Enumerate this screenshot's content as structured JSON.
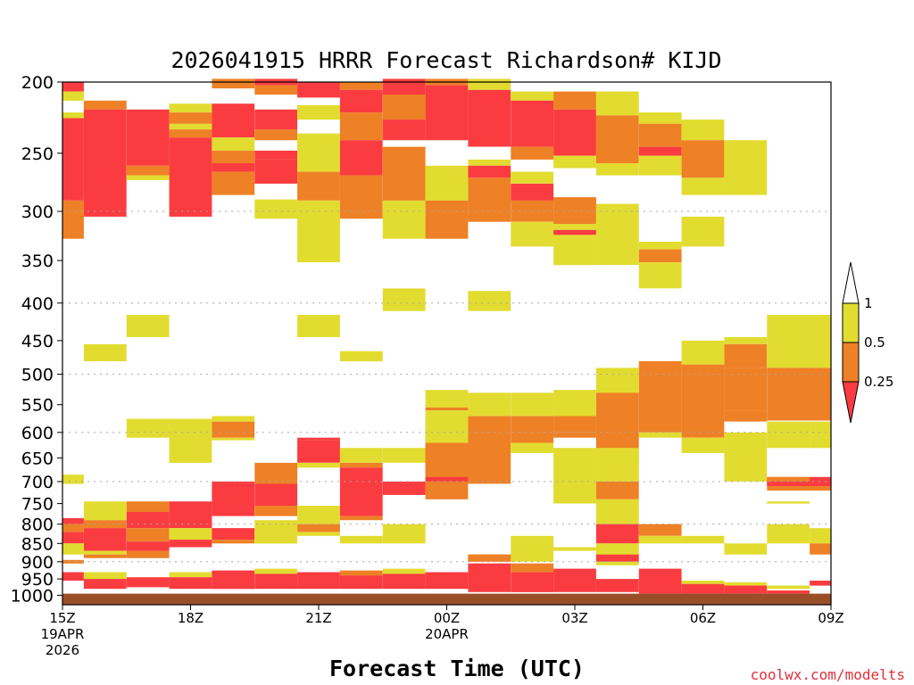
{
  "chart_data": {
    "type": "heatmap",
    "title": "2026041915 HRRR Forecast Richardson# KIJD",
    "xlabel": "Forecast Time (UTC)",
    "credit": "coolwx.com/modelts",
    "x_range_hours": [
      0,
      18
    ],
    "y_range_hpa": [
      200,
      1030
    ],
    "y_ticks": [
      200,
      250,
      300,
      350,
      400,
      450,
      500,
      550,
      600,
      650,
      700,
      750,
      800,
      850,
      900,
      950,
      1000
    ],
    "gridlines_hpa": [
      300,
      400,
      500,
      600,
      700,
      800,
      900
    ],
    "x_ticks": [
      {
        "h": 0,
        "lines": [
          "15Z",
          "19APR",
          "2026"
        ]
      },
      {
        "h": 3,
        "lines": [
          "18Z"
        ]
      },
      {
        "h": 6,
        "lines": [
          "21Z"
        ]
      },
      {
        "h": 9,
        "lines": [
          "00Z",
          "20APR"
        ]
      },
      {
        "h": 12,
        "lines": [
          "03Z"
        ]
      },
      {
        "h": 15,
        "lines": [
          "06Z"
        ]
      },
      {
        "h": 18,
        "lines": [
          "09Z"
        ]
      }
    ],
    "legend": {
      "placement": "right",
      "labels": [
        "1",
        "0.5",
        "0.25"
      ],
      "colors": {
        "white": "#ffffff",
        "yellow": "#e2dc30",
        "orange": "#ee8026",
        "red": "#fa3c40"
      }
    },
    "ground_color": "#9a4e28",
    "ground_top_hpa": 995,
    "category_colors": {
      "Y": "#e2dc30",
      "O": "#ee8026",
      "R": "#fa3c40"
    },
    "cells": [
      [
        0.0,
        0.5,
        200,
        206,
        "R"
      ],
      [
        0.0,
        0.5,
        206,
        212,
        "Y"
      ],
      [
        0.0,
        0.5,
        220,
        224,
        "Y"
      ],
      [
        0.0,
        0.5,
        224,
        290,
        "R"
      ],
      [
        0.0,
        0.5,
        290,
        327,
        "O"
      ],
      [
        0.5,
        1.5,
        212,
        218,
        "O"
      ],
      [
        0.5,
        1.5,
        218,
        305,
        "R"
      ],
      [
        1.5,
        2.5,
        218,
        260,
        "R"
      ],
      [
        1.5,
        2.5,
        260,
        268,
        "O"
      ],
      [
        1.5,
        2.5,
        268,
        272,
        "Y"
      ],
      [
        2.5,
        3.5,
        214,
        220,
        "Y"
      ],
      [
        2.5,
        3.5,
        220,
        228,
        "O"
      ],
      [
        2.5,
        3.5,
        228,
        232,
        "Y"
      ],
      [
        2.5,
        3.5,
        232,
        238,
        "O"
      ],
      [
        2.5,
        3.5,
        238,
        305,
        "R"
      ],
      [
        3.5,
        4.5,
        198,
        204,
        "O"
      ],
      [
        3.5,
        4.5,
        214,
        238,
        "R"
      ],
      [
        3.5,
        4.5,
        238,
        248,
        "Y"
      ],
      [
        3.5,
        4.5,
        248,
        258,
        "O"
      ],
      [
        3.5,
        4.5,
        258,
        265,
        "R"
      ],
      [
        3.5,
        4.5,
        265,
        285,
        "O"
      ],
      [
        4.5,
        5.5,
        198,
        202,
        "R"
      ],
      [
        4.5,
        5.5,
        202,
        208,
        "O"
      ],
      [
        4.5,
        5.5,
        218,
        232,
        "R"
      ],
      [
        4.5,
        5.5,
        232,
        240,
        "O"
      ],
      [
        4.5,
        5.5,
        248,
        255,
        "R"
      ],
      [
        4.5,
        5.5,
        255,
        275,
        "R"
      ],
      [
        4.5,
        5.5,
        289,
        307,
        "Y"
      ],
      [
        5.5,
        6.5,
        200,
        210,
        "R"
      ],
      [
        5.5,
        6.5,
        215,
        225,
        "Y"
      ],
      [
        5.5,
        6.5,
        235,
        265,
        "Y"
      ],
      [
        5.5,
        6.5,
        265,
        290,
        "O"
      ],
      [
        5.5,
        6.5,
        290,
        352,
        "Y"
      ],
      [
        6.5,
        7.5,
        200,
        205,
        "O"
      ],
      [
        6.5,
        7.5,
        205,
        220,
        "R"
      ],
      [
        6.5,
        7.5,
        220,
        240,
        "O"
      ],
      [
        6.5,
        7.5,
        240,
        268,
        "R"
      ],
      [
        6.5,
        7.5,
        268,
        307,
        "O"
      ],
      [
        7.5,
        8.5,
        198,
        208,
        "R"
      ],
      [
        7.5,
        8.5,
        208,
        225,
        "O"
      ],
      [
        7.5,
        8.5,
        225,
        240,
        "R"
      ],
      [
        7.5,
        8.5,
        245,
        290,
        "O"
      ],
      [
        7.5,
        8.5,
        290,
        327,
        "Y"
      ],
      [
        8.5,
        9.5,
        198,
        202,
        "O"
      ],
      [
        8.5,
        9.5,
        202,
        240,
        "R"
      ],
      [
        8.5,
        9.5,
        260,
        290,
        "Y"
      ],
      [
        8.5,
        9.5,
        290,
        327,
        "O"
      ],
      [
        9.5,
        10.5,
        198,
        205,
        "Y"
      ],
      [
        9.5,
        10.5,
        205,
        245,
        "R"
      ],
      [
        9.5,
        10.5,
        255,
        260,
        "Y"
      ],
      [
        9.5,
        10.5,
        260,
        270,
        "R"
      ],
      [
        9.5,
        10.5,
        270,
        300,
        "O"
      ],
      [
        9.5,
        10.5,
        300,
        310,
        "O"
      ],
      [
        10.5,
        11.5,
        206,
        212,
        "Y"
      ],
      [
        10.5,
        11.5,
        212,
        245,
        "R"
      ],
      [
        10.5,
        11.5,
        245,
        255,
        "O"
      ],
      [
        10.5,
        11.5,
        265,
        275,
        "Y"
      ],
      [
        10.5,
        11.5,
        275,
        290,
        "R"
      ],
      [
        10.5,
        11.5,
        290,
        310,
        "O"
      ],
      [
        10.5,
        11.5,
        310,
        335,
        "Y"
      ],
      [
        11.5,
        12.5,
        206,
        218,
        "O"
      ],
      [
        11.5,
        12.5,
        218,
        252,
        "R"
      ],
      [
        11.5,
        12.5,
        252,
        262,
        "Y"
      ],
      [
        11.5,
        12.5,
        287,
        312,
        "O"
      ],
      [
        11.5,
        12.5,
        312,
        318,
        "Y"
      ],
      [
        11.5,
        12.5,
        318,
        323,
        "R"
      ],
      [
        11.5,
        12.5,
        323,
        355,
        "Y"
      ],
      [
        12.5,
        13.5,
        206,
        222,
        "Y"
      ],
      [
        12.5,
        13.5,
        222,
        258,
        "O"
      ],
      [
        12.5,
        13.5,
        258,
        268,
        "Y"
      ],
      [
        12.5,
        13.5,
        293,
        355,
        "Y"
      ],
      [
        13.5,
        14.5,
        220,
        228,
        "Y"
      ],
      [
        13.5,
        14.5,
        228,
        245,
        "O"
      ],
      [
        13.5,
        14.5,
        245,
        252,
        "R"
      ],
      [
        13.5,
        14.5,
        252,
        268,
        "Y"
      ],
      [
        13.5,
        14.5,
        330,
        338,
        "Y"
      ],
      [
        13.5,
        14.5,
        338,
        352,
        "O"
      ],
      [
        13.5,
        14.5,
        352,
        382,
        "Y"
      ],
      [
        14.5,
        15.5,
        225,
        240,
        "Y"
      ],
      [
        14.5,
        15.5,
        240,
        270,
        "O"
      ],
      [
        14.5,
        15.5,
        270,
        285,
        "Y"
      ],
      [
        14.5,
        15.5,
        305,
        335,
        "Y"
      ],
      [
        15.5,
        16.5,
        240,
        285,
        "Y"
      ],
      [
        0.0,
        0.5,
        685,
        705,
        "Y"
      ],
      [
        0.5,
        1.5,
        455,
        480,
        "Y"
      ],
      [
        1.5,
        2.5,
        415,
        445,
        "Y"
      ],
      [
        5.5,
        6.5,
        415,
        445,
        "Y"
      ],
      [
        6.5,
        7.5,
        465,
        480,
        "Y"
      ],
      [
        7.5,
        8.5,
        382,
        410,
        "Y"
      ],
      [
        9.5,
        10.5,
        385,
        410,
        "Y"
      ],
      [
        15.5,
        16.5,
        445,
        455,
        "Y"
      ],
      [
        15.5,
        16.5,
        455,
        490,
        "O"
      ],
      [
        16.5,
        18.0,
        415,
        490,
        "Y"
      ],
      [
        16.5,
        18.0,
        490,
        578,
        "O"
      ],
      [
        15.5,
        16.5,
        490,
        560,
        "O"
      ],
      [
        15.5,
        16.5,
        560,
        580,
        "O"
      ],
      [
        14.5,
        15.5,
        450,
        485,
        "Y"
      ],
      [
        14.5,
        15.5,
        485,
        610,
        "O"
      ],
      [
        13.5,
        14.5,
        480,
        600,
        "O"
      ],
      [
        13.5,
        14.5,
        600,
        610,
        "Y"
      ],
      [
        12.5,
        13.5,
        490,
        530,
        "Y"
      ],
      [
        12.5,
        13.5,
        530,
        660,
        "O"
      ],
      [
        12.5,
        13.5,
        660,
        670,
        "Y"
      ],
      [
        11.5,
        12.5,
        525,
        570,
        "Y"
      ],
      [
        11.5,
        12.5,
        570,
        600,
        "O"
      ],
      [
        11.5,
        12.5,
        600,
        610,
        "O"
      ],
      [
        10.5,
        11.5,
        530,
        570,
        "Y"
      ],
      [
        10.5,
        11.5,
        570,
        625,
        "O"
      ],
      [
        9.5,
        10.5,
        530,
        570,
        "Y"
      ],
      [
        9.5,
        10.5,
        570,
        650,
        "O"
      ],
      [
        8.5,
        9.5,
        525,
        555,
        "Y"
      ],
      [
        8.5,
        9.5,
        555,
        560,
        "O"
      ],
      [
        8.5,
        9.5,
        560,
        580,
        "Y"
      ],
      [
        8.5,
        9.5,
        580,
        705,
        "O"
      ],
      [
        0.5,
        1.5,
        745,
        790,
        "Y"
      ],
      [
        0.5,
        1.5,
        790,
        810,
        "O"
      ],
      [
        0.5,
        1.5,
        810,
        870,
        "R"
      ],
      [
        0.5,
        1.5,
        870,
        880,
        "Y"
      ],
      [
        0.5,
        1.5,
        880,
        890,
        "O"
      ],
      [
        0.0,
        0.5,
        785,
        800,
        "R"
      ],
      [
        0.0,
        0.5,
        800,
        820,
        "O"
      ],
      [
        0.0,
        0.5,
        820,
        850,
        "R"
      ],
      [
        0.0,
        0.5,
        850,
        880,
        "Y"
      ],
      [
        0.0,
        0.5,
        895,
        905,
        "O"
      ],
      [
        1.5,
        2.5,
        745,
        770,
        "O"
      ],
      [
        1.5,
        2.5,
        770,
        810,
        "R"
      ],
      [
        1.5,
        2.5,
        810,
        845,
        "O"
      ],
      [
        1.5,
        2.5,
        845,
        870,
        "R"
      ],
      [
        1.5,
        2.5,
        870,
        890,
        "O"
      ],
      [
        2.5,
        3.5,
        745,
        810,
        "R"
      ],
      [
        2.5,
        3.5,
        810,
        840,
        "Y"
      ],
      [
        2.5,
        3.5,
        840,
        860,
        "R"
      ],
      [
        3.5,
        4.5,
        700,
        780,
        "R"
      ],
      [
        3.5,
        4.5,
        810,
        840,
        "R"
      ],
      [
        3.5,
        4.5,
        840,
        850,
        "O"
      ],
      [
        2.5,
        3.5,
        575,
        660,
        "Y"
      ],
      [
        1.5,
        2.5,
        575,
        610,
        "Y"
      ],
      [
        3.5,
        4.5,
        570,
        580,
        "Y"
      ],
      [
        3.5,
        4.5,
        580,
        610,
        "O"
      ],
      [
        3.5,
        4.5,
        610,
        615,
        "Y"
      ],
      [
        4.5,
        5.5,
        660,
        705,
        "O"
      ],
      [
        4.5,
        5.5,
        705,
        755,
        "R"
      ],
      [
        4.5,
        5.5,
        755,
        780,
        "O"
      ],
      [
        4.5,
        5.5,
        790,
        850,
        "Y"
      ],
      [
        5.5,
        6.5,
        610,
        615,
        "R"
      ],
      [
        5.5,
        6.5,
        615,
        660,
        "R"
      ],
      [
        5.5,
        6.5,
        660,
        670,
        "Y"
      ],
      [
        5.5,
        6.5,
        755,
        800,
        "Y"
      ],
      [
        5.5,
        6.5,
        800,
        820,
        "O"
      ],
      [
        5.5,
        6.5,
        820,
        830,
        "Y"
      ],
      [
        6.5,
        7.5,
        630,
        660,
        "Y"
      ],
      [
        6.5,
        7.5,
        660,
        670,
        "O"
      ],
      [
        6.5,
        7.5,
        670,
        780,
        "R"
      ],
      [
        6.5,
        7.5,
        780,
        790,
        "O"
      ],
      [
        6.5,
        7.5,
        830,
        850,
        "Y"
      ],
      [
        7.5,
        8.5,
        630,
        660,
        "Y"
      ],
      [
        7.5,
        8.5,
        700,
        730,
        "R"
      ],
      [
        7.5,
        8.5,
        800,
        850,
        "Y"
      ],
      [
        8.5,
        9.5,
        565,
        620,
        "Y"
      ],
      [
        8.5,
        9.5,
        620,
        690,
        "O"
      ],
      [
        8.5,
        9.5,
        690,
        700,
        "R"
      ],
      [
        8.5,
        9.5,
        700,
        710,
        "O"
      ],
      [
        8.5,
        9.5,
        710,
        740,
        "O"
      ],
      [
        9.5,
        10.5,
        650,
        705,
        "O"
      ],
      [
        9.5,
        10.5,
        880,
        900,
        "O"
      ],
      [
        10.5,
        11.5,
        620,
        640,
        "Y"
      ],
      [
        10.5,
        11.5,
        830,
        900,
        "Y"
      ],
      [
        11.5,
        12.5,
        630,
        750,
        "Y"
      ],
      [
        11.5,
        12.5,
        860,
        870,
        "Y"
      ],
      [
        12.5,
        13.5,
        630,
        700,
        "Y"
      ],
      [
        12.5,
        13.5,
        700,
        740,
        "O"
      ],
      [
        12.5,
        13.5,
        740,
        800,
        "Y"
      ],
      [
        12.5,
        13.5,
        800,
        850,
        "R"
      ],
      [
        12.5,
        13.5,
        850,
        900,
        "Y"
      ],
      [
        12.5,
        13.5,
        880,
        900,
        "R"
      ],
      [
        12.5,
        13.5,
        900,
        910,
        "Y"
      ],
      [
        13.5,
        14.5,
        800,
        830,
        "O"
      ],
      [
        13.5,
        14.5,
        830,
        850,
        "Y"
      ],
      [
        14.5,
        15.5,
        610,
        640,
        "Y"
      ],
      [
        14.5,
        15.5,
        830,
        850,
        "Y"
      ],
      [
        15.5,
        16.5,
        600,
        700,
        "Y"
      ],
      [
        15.5,
        16.5,
        850,
        880,
        "Y"
      ],
      [
        16.5,
        17.5,
        580,
        630,
        "Y"
      ],
      [
        16.5,
        17.5,
        690,
        700,
        "R"
      ],
      [
        16.5,
        17.5,
        700,
        710,
        "Y"
      ],
      [
        16.5,
        17.5,
        745,
        750,
        "Y"
      ],
      [
        16.5,
        17.5,
        800,
        850,
        "Y"
      ],
      [
        17.5,
        18.0,
        580,
        630,
        "Y"
      ],
      [
        17.5,
        18.0,
        700,
        710,
        "O"
      ],
      [
        17.5,
        18.0,
        710,
        720,
        "O"
      ],
      [
        17.5,
        18.0,
        810,
        850,
        "Y"
      ],
      [
        17.5,
        18.0,
        850,
        880,
        "O"
      ],
      [
        16.5,
        17.5,
        690,
        720,
        "O"
      ],
      [
        17.5,
        18.0,
        690,
        710,
        "R"
      ],
      [
        16.5,
        17.5,
        700,
        710,
        "R"
      ],
      [
        0.0,
        0.5,
        930,
        955,
        "R"
      ],
      [
        0.5,
        1.5,
        930,
        950,
        "Y"
      ],
      [
        0.5,
        1.5,
        950,
        980,
        "R"
      ],
      [
        1.5,
        2.5,
        945,
        975,
        "R"
      ],
      [
        2.5,
        3.5,
        930,
        945,
        "Y"
      ],
      [
        2.5,
        3.5,
        945,
        980,
        "R"
      ],
      [
        3.5,
        4.5,
        925,
        980,
        "R"
      ],
      [
        4.5,
        5.5,
        920,
        935,
        "Y"
      ],
      [
        4.5,
        5.5,
        935,
        980,
        "R"
      ],
      [
        5.5,
        6.5,
        930,
        980,
        "R"
      ],
      [
        6.5,
        7.5,
        925,
        940,
        "O"
      ],
      [
        6.5,
        7.5,
        940,
        980,
        "R"
      ],
      [
        7.5,
        8.5,
        920,
        935,
        "Y"
      ],
      [
        7.5,
        8.5,
        935,
        980,
        "R"
      ],
      [
        8.5,
        9.5,
        930,
        980,
        "R"
      ],
      [
        9.5,
        10.5,
        880,
        900,
        "O"
      ],
      [
        9.5,
        10.5,
        905,
        990,
        "R"
      ],
      [
        10.5,
        11.5,
        905,
        930,
        "O"
      ],
      [
        10.5,
        11.5,
        930,
        990,
        "R"
      ],
      [
        11.5,
        12.5,
        920,
        990,
        "R"
      ],
      [
        12.5,
        13.5,
        950,
        990,
        "R"
      ],
      [
        13.5,
        14.5,
        920,
        995,
        "R"
      ],
      [
        14.5,
        15.5,
        955,
        965,
        "Y"
      ],
      [
        14.5,
        15.5,
        965,
        995,
        "R"
      ],
      [
        15.5,
        16.5,
        960,
        970,
        "Y"
      ],
      [
        15.5,
        16.5,
        970,
        995,
        "R"
      ],
      [
        16.5,
        17.5,
        970,
        980,
        "Y"
      ],
      [
        16.5,
        17.5,
        985,
        995,
        "R"
      ],
      [
        17.5,
        18.0,
        955,
        970,
        "R"
      ]
    ]
  }
}
